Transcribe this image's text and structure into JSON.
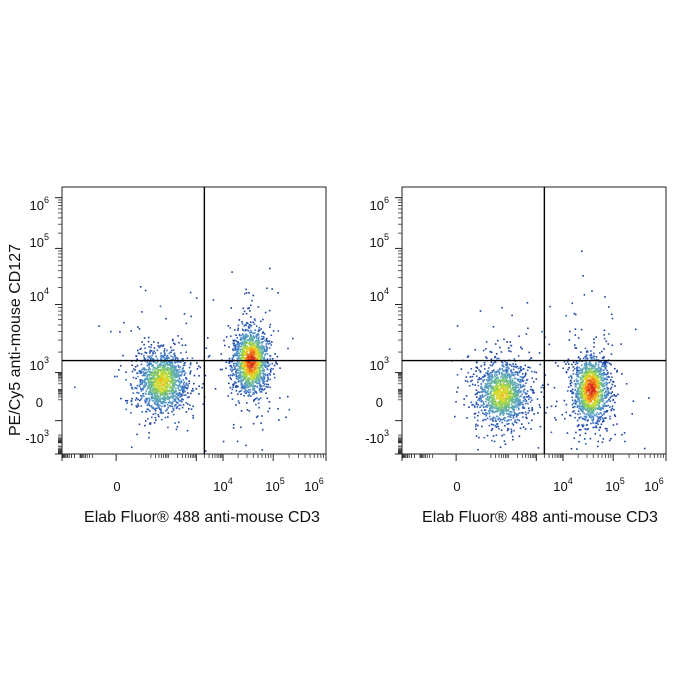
{
  "chart_data": [
    {
      "type": "scatter",
      "subtype": "flow-cytometry-density-plot",
      "title": "",
      "xlabel": "Elab Fluor® 488 anti-mouse CD3",
      "ylabel": "PE/Cy5 anti-mouse CD127",
      "x_scale": "biexponential",
      "y_scale": "biexponential",
      "xlim": [
        -1000,
        1000000
      ],
      "ylim": [
        -1000,
        1000000
      ],
      "x_ticks": [
        {
          "value": 0,
          "base": "0",
          "exp": ""
        },
        {
          "value": 10000,
          "base": "10",
          "exp": "4"
        },
        {
          "value": 100000,
          "base": "10",
          "exp": "5"
        },
        {
          "value": 1000000,
          "base": "10",
          "exp": "6"
        }
      ],
      "y_ticks": [
        {
          "value": 1000000,
          "base": "10",
          "exp": "6"
        },
        {
          "value": 100000,
          "base": "10",
          "exp": "5"
        },
        {
          "value": 10000,
          "base": "10",
          "exp": "4"
        },
        {
          "value": 1000,
          "base": "10",
          "exp": "3"
        },
        {
          "value": 0,
          "base": "0",
          "exp": ""
        },
        {
          "value": -1000,
          "base": "-10",
          "exp": "3"
        }
      ],
      "quadrant_gate": {
        "x": 2000,
        "y": 1500
      },
      "populations": [
        {
          "x_center": 50,
          "y_center": 300,
          "events": 1400,
          "density_peak": "yellow-green"
        },
        {
          "x_center": 35000,
          "y_center": 1500,
          "events": 1400,
          "density_peak": "red"
        }
      ]
    },
    {
      "type": "scatter",
      "subtype": "flow-cytometry-density-plot",
      "title": "",
      "xlabel": "Elab Fluor® 488 anti-mouse CD3",
      "ylabel": "",
      "x_scale": "biexponential",
      "y_scale": "biexponential",
      "xlim": [
        -1000,
        1000000
      ],
      "ylim": [
        -1000,
        1000000
      ],
      "x_ticks": [
        {
          "value": 0,
          "base": "0",
          "exp": ""
        },
        {
          "value": 10000,
          "base": "10",
          "exp": "4"
        },
        {
          "value": 100000,
          "base": "10",
          "exp": "5"
        },
        {
          "value": 1000000,
          "base": "10",
          "exp": "6"
        }
      ],
      "y_ticks": [
        {
          "value": 1000000,
          "base": "10",
          "exp": "6"
        },
        {
          "value": 100000,
          "base": "10",
          "exp": "5"
        },
        {
          "value": 10000,
          "base": "10",
          "exp": "4"
        },
        {
          "value": 1000,
          "base": "10",
          "exp": "3"
        },
        {
          "value": 0,
          "base": "0",
          "exp": ""
        },
        {
          "value": -1000,
          "base": "-10",
          "exp": "3"
        }
      ],
      "quadrant_gate": {
        "x": 2000,
        "y": 1500
      },
      "populations": [
        {
          "x_center": 50,
          "y_center": 50,
          "events": 1300,
          "density_peak": "yellow-green"
        },
        {
          "x_center": 35000,
          "y_center": 100,
          "events": 1400,
          "density_peak": "red"
        }
      ]
    }
  ]
}
